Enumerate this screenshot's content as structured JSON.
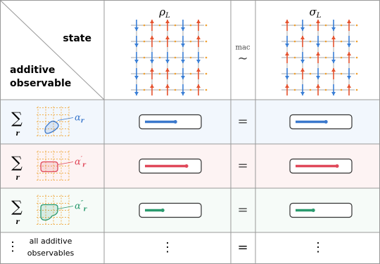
{
  "header": {
    "state": "state",
    "observable_lines": [
      "additive",
      "observable"
    ],
    "states": [
      {
        "symbol": "ρ",
        "sub": "L"
      },
      {
        "symbol": "σ",
        "sub": "L"
      }
    ],
    "relation_top": "mac",
    "relation": "∼"
  },
  "rows": [
    {
      "sum": "∑",
      "index": "r",
      "symbol": "α",
      "sub": "r",
      "color": "#3b78cc",
      "equals": "="
    },
    {
      "sum": "∑",
      "index": "r",
      "symbol": "α",
      "prime": "′",
      "sub": "r",
      "color": "#e0485a",
      "equals": "="
    },
    {
      "sum": "∑",
      "index": "r",
      "symbol": "α",
      "prime": "″",
      "sub": "r",
      "color": "#2a9a6e",
      "equals": "="
    }
  ],
  "last_row": {
    "dots": "⋮",
    "label_lines": [
      "all additive",
      "observables"
    ],
    "equals": "="
  }
}
